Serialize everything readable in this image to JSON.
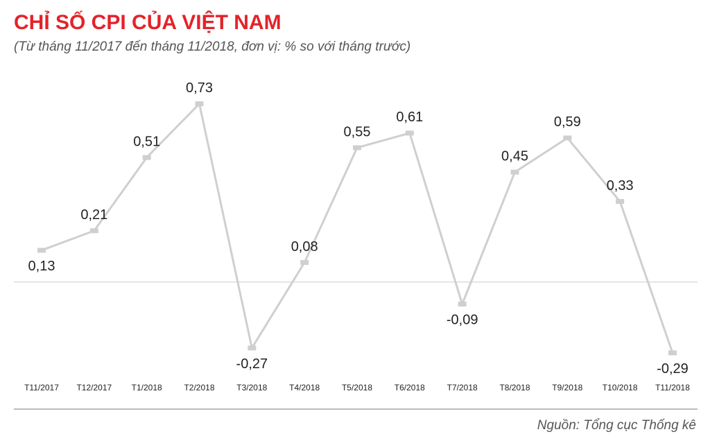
{
  "chart_data": {
    "type": "line",
    "title": "CHỈ SỐ CPI CỦA VIỆT NAM",
    "subtitle": "(Từ tháng 11/2017 đến tháng 11/2018, đơn vị: % so với tháng trước)",
    "source": "Nguồn: Tổng cục Thống kê",
    "categories": [
      "T11/2017",
      "T12/2017",
      "T1/2018",
      "T2/2018",
      "T3/2018",
      "T4/2018",
      "T5/2018",
      "T6/2018",
      "T7/2018",
      "T8/2018",
      "T9/2018",
      "T10/2018",
      "T11/2018"
    ],
    "values": [
      0.13,
      0.21,
      0.51,
      0.73,
      -0.27,
      0.08,
      0.55,
      0.61,
      -0.09,
      0.45,
      0.59,
      0.33,
      -0.29
    ],
    "value_labels": [
      "0,13",
      "0,21",
      "0,51",
      "0,73",
      "-0,27",
      "0,08",
      "0,55",
      "0,61",
      "-0,09",
      "0,45",
      "0,59",
      "0,33",
      "-0,29"
    ],
    "color": "#cfcfcf",
    "ylim": [
      -0.35,
      0.8
    ]
  }
}
